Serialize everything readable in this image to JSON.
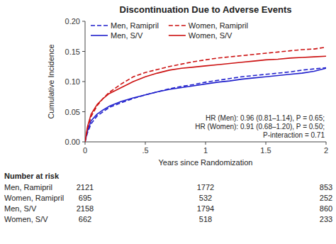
{
  "chart_data": {
    "type": "line",
    "title": "Discontinuation Due to Adverse Events",
    "xlabel": "Years since Randomization",
    "ylabel": "Cumulative Incidence",
    "xlim": [
      0,
      2.0
    ],
    "ylim": [
      0,
      0.2
    ],
    "xticks": [
      0,
      {
        "value": 0.5,
        "label": ".5"
      },
      1,
      1.5,
      2
    ],
    "yticks": [
      {
        "value": 0.0,
        "label": "0.00"
      },
      {
        "value": 0.05,
        "label": "0.05"
      },
      {
        "value": 0.1,
        "label": "0.10"
      },
      {
        "value": 0.15,
        "label": "0.15"
      },
      {
        "value": 0.2,
        "label": "0.20"
      }
    ],
    "grid": false,
    "legend": "upper left",
    "x": [
      0,
      0.02,
      0.05,
      0.1,
      0.15,
      0.2,
      0.3,
      0.4,
      0.5,
      0.6,
      0.7,
      0.8,
      0.9,
      1.0,
      1.1,
      1.2,
      1.3,
      1.4,
      1.5,
      1.6,
      1.7,
      1.8,
      1.9,
      2.0
    ],
    "series": [
      {
        "name": "Men, Ramipril",
        "color": "#2020cc",
        "line_style": "dashed",
        "values": [
          0.0,
          0.015,
          0.03,
          0.043,
          0.05,
          0.057,
          0.065,
          0.072,
          0.078,
          0.083,
          0.088,
          0.092,
          0.095,
          0.099,
          0.102,
          0.105,
          0.108,
          0.11,
          0.112,
          0.114,
          0.116,
          0.119,
          0.121,
          0.123
        ]
      },
      {
        "name": "Men, S/V",
        "color": "#2020cc",
        "line_style": "solid",
        "values": [
          0.0,
          0.018,
          0.035,
          0.046,
          0.053,
          0.059,
          0.067,
          0.073,
          0.078,
          0.083,
          0.087,
          0.09,
          0.093,
          0.096,
          0.099,
          0.101,
          0.104,
          0.106,
          0.108,
          0.11,
          0.112,
          0.114,
          0.117,
          0.122
        ]
      },
      {
        "name": "Women, Ramipril",
        "color": "#cc1111",
        "line_style": "dashed",
        "values": [
          0.0,
          0.022,
          0.042,
          0.06,
          0.072,
          0.082,
          0.096,
          0.108,
          0.115,
          0.12,
          0.125,
          0.129,
          0.133,
          0.136,
          0.139,
          0.141,
          0.143,
          0.145,
          0.147,
          0.149,
          0.151,
          0.153,
          0.154,
          0.157
        ]
      },
      {
        "name": "Women, S/V",
        "color": "#cc1111",
        "line_style": "solid",
        "values": [
          0.0,
          0.025,
          0.046,
          0.062,
          0.072,
          0.08,
          0.09,
          0.1,
          0.108,
          0.114,
          0.119,
          0.122,
          0.124,
          0.126,
          0.128,
          0.13,
          0.132,
          0.134,
          0.136,
          0.137,
          0.139,
          0.14,
          0.141,
          0.142
        ]
      }
    ],
    "annotation": "HR (Men): 0.96 (0.81–1.14), P = 0.65;\nHR (Women): 0.91 (0.68–1.20), P = 0.50;\nP-interaction = 0.71",
    "number_at_risk": {
      "header": "Number at risk",
      "x": [
        0,
        1,
        2
      ],
      "rows": [
        {
          "name": "Men, Ramipril",
          "values": [
            2121,
            1772,
            853
          ]
        },
        {
          "name": "Women, Ramipril",
          "values": [
            695,
            532,
            252
          ]
        },
        {
          "name": "Men, S/V",
          "values": [
            2158,
            1794,
            860
          ]
        },
        {
          "name": "Women, S/V",
          "values": [
            662,
            518,
            233
          ]
        }
      ]
    }
  }
}
